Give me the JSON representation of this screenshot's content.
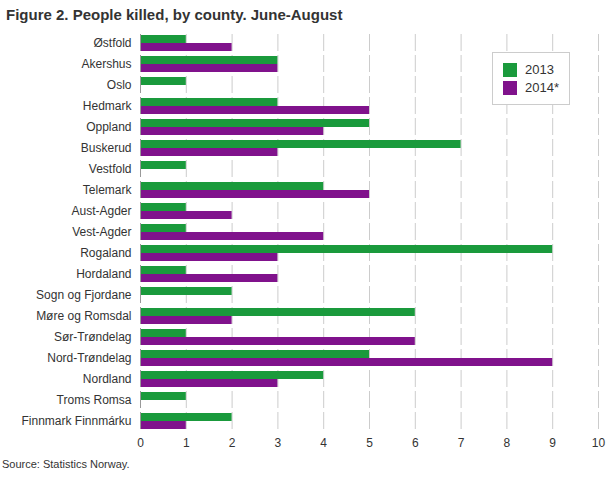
{
  "chart_data": {
    "type": "bar",
    "orientation": "horizontal",
    "title": "Figure 2. People killed, by county. June-August",
    "source": "Source: Statistics Norway.",
    "categories": [
      "Østfold",
      "Akershus",
      "Oslo",
      "Hedmark",
      "Oppland",
      "Buskerud",
      "Vestfold",
      "Telemark",
      "Aust-Agder",
      "Vest-Agder",
      "Rogaland",
      "Hordaland",
      "Sogn og Fjordane",
      "Møre og Romsdal",
      "Sør-Trøndelag",
      "Nord-Trøndelag",
      "Nordland",
      "Troms Romsa",
      "Finnmark Finnmárku"
    ],
    "series": [
      {
        "name": "2013",
        "color": "#1a9a3c",
        "values": [
          1,
          3,
          1,
          3,
          5,
          7,
          1,
          4,
          1,
          1,
          9,
          1,
          2,
          6,
          1,
          5,
          4,
          1,
          2
        ]
      },
      {
        "name": "2014*",
        "color": "#80128c",
        "values": [
          2,
          3,
          0,
          5,
          4,
          3,
          0,
          5,
          2,
          4,
          3,
          3,
          0,
          2,
          6,
          9,
          3,
          0,
          1
        ]
      }
    ],
    "xlim": [
      0,
      10
    ],
    "xticks": [
      0,
      1,
      2,
      3,
      4,
      5,
      6,
      7,
      8,
      9,
      10
    ],
    "grid": true,
    "legend": "top-right"
  }
}
